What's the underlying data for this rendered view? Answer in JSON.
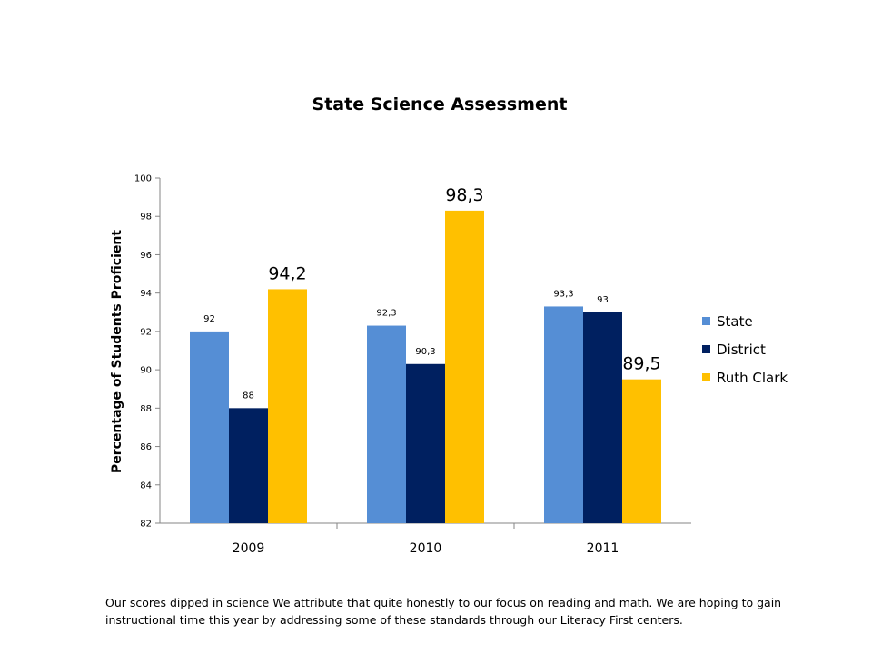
{
  "chart_data": {
    "type": "bar",
    "title": "State Science Assessment",
    "xlabel": "",
    "ylabel": "Percentage of Students Proficient",
    "ylim": [
      82,
      100
    ],
    "yticks": [
      82,
      84,
      86,
      88,
      90,
      92,
      94,
      96,
      98,
      100
    ],
    "categories": [
      "2009",
      "2010",
      "2011"
    ],
    "series": [
      {
        "name": "State",
        "color": "#558ED5",
        "values": [
          92,
          92.3,
          93.3
        ],
        "labels": [
          "92",
          "92,3",
          "93,3"
        ]
      },
      {
        "name": "District",
        "color": "#002060",
        "values": [
          88,
          90.3,
          93
        ],
        "labels": [
          "88",
          "90,3",
          "93"
        ]
      },
      {
        "name": "Ruth Clark",
        "color": "#FFC000",
        "values": [
          94.2,
          98.3,
          89.5
        ],
        "labels": [
          "94,2",
          "98,3",
          "89,5"
        ]
      }
    ],
    "grid": false,
    "legend": "right"
  },
  "caption": "Our scores dipped in science  We attribute that quite honestly to our focus on reading and math. We are hoping to gain instructional time this year by addressing some of these standards through our Literacy First centers."
}
